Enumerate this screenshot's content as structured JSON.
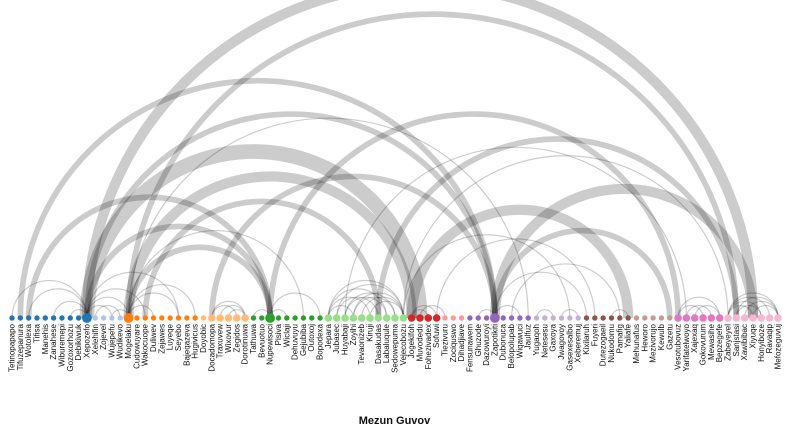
{
  "caption": "Mezun Guvov",
  "colors": {
    "arc": "#000000",
    "groups": [
      "#1f77b4",
      "#aec7e8",
      "#ff7f0e",
      "#ffbb78",
      "#2ca02c",
      "#98df8a",
      "#d62728",
      "#ff9896",
      "#9467bd",
      "#c5b0d5",
      "#8c564b",
      "#c49c94",
      "#e377c2",
      "#f7b6d2"
    ]
  },
  "nodes": [
    {
      "name": "Tetinopapapo",
      "group": 0,
      "size": 1
    },
    {
      "name": "Tifuzepanura",
      "group": 0,
      "size": 1
    },
    {
      "name": "Wotolexa",
      "group": 0,
      "size": 1
    },
    {
      "name": "Tifisa",
      "group": 0,
      "size": 1
    },
    {
      "name": "Manehis",
      "group": 0,
      "size": 1
    },
    {
      "name": "Zanahese",
      "group": 0,
      "size": 1
    },
    {
      "name": "Wiburemepi",
      "group": 0,
      "size": 1
    },
    {
      "name": "Gozoxorhozu",
      "group": 0,
      "size": 1
    },
    {
      "name": "Debikiwuk",
      "group": 0,
      "size": 1
    },
    {
      "name": "Xepozefo",
      "group": 0,
      "size": 3
    },
    {
      "name": "Xelehifin",
      "group": 1,
      "size": 1
    },
    {
      "name": "Zojevel",
      "group": 1,
      "size": 1
    },
    {
      "name": "Wujepefu",
      "group": 1,
      "size": 1
    },
    {
      "name": "Wudikevo",
      "group": 1,
      "size": 1
    },
    {
      "name": "Mogelaku",
      "group": 2,
      "size": 3
    },
    {
      "name": "Cudowuyare",
      "group": 2,
      "size": 1
    },
    {
      "name": "Wakocuope",
      "group": 2,
      "size": 1
    },
    {
      "name": "Duliwev",
      "group": 2,
      "size": 1
    },
    {
      "name": "Zejawes",
      "group": 2,
      "size": 1
    },
    {
      "name": "Luyeqe",
      "group": 2,
      "size": 1
    },
    {
      "name": "Seyebo",
      "group": 2,
      "size": 1
    },
    {
      "name": "Bajeqazeva",
      "group": 2,
      "size": 1
    },
    {
      "name": "Hugivicus",
      "group": 2,
      "size": 1
    },
    {
      "name": "Doyobic",
      "group": 3,
      "size": 1
    },
    {
      "name": "Docadomopa",
      "group": 3,
      "size": 2
    },
    {
      "name": "Traxuvew",
      "group": 3,
      "size": 2
    },
    {
      "name": "Wixovur",
      "group": 3,
      "size": 2
    },
    {
      "name": "Zegidos",
      "group": 3,
      "size": 2
    },
    {
      "name": "Dorotinuwa",
      "group": 3,
      "size": 2
    },
    {
      "name": "Tathuwa",
      "group": 4,
      "size": 1
    },
    {
      "name": "Bevuotuo",
      "group": 4,
      "size": 1
    },
    {
      "name": "Nupewisoci",
      "group": 4,
      "size": 3
    },
    {
      "name": "Pisiva",
      "group": 4,
      "size": 1
    },
    {
      "name": "Wiclaji",
      "group": 4,
      "size": 1
    },
    {
      "name": "Dehuvuyu",
      "group": 4,
      "size": 1
    },
    {
      "name": "Gejubiba",
      "group": 4,
      "size": 1
    },
    {
      "name": "Outoxoj",
      "group": 4,
      "size": 1
    },
    {
      "name": "Bopodexa",
      "group": 4,
      "size": 1
    },
    {
      "name": "Jepara",
      "group": 5,
      "size": 2
    },
    {
      "name": "Jubasec",
      "group": 5,
      "size": 2
    },
    {
      "name": "Huyabaji",
      "group": 5,
      "size": 2
    },
    {
      "name": "Zoyihi",
      "group": 5,
      "size": 2
    },
    {
      "name": "Tevaonizeb",
      "group": 5,
      "size": 2
    },
    {
      "name": "Kiruji",
      "group": 5,
      "size": 2
    },
    {
      "name": "Dasakudas",
      "group": 5,
      "size": 2
    },
    {
      "name": "Labaluqule",
      "group": 5,
      "size": 2
    },
    {
      "name": "Sedowepuma",
      "group": 5,
      "size": 2
    },
    {
      "name": "Vejecobozu",
      "group": 5,
      "size": 2
    },
    {
      "name": "Jogekifoh",
      "group": 6,
      "size": 2
    },
    {
      "name": "Muvodedu",
      "group": 6,
      "size": 2
    },
    {
      "name": "Fohezivadex",
      "group": 6,
      "size": 2
    },
    {
      "name": "Sofuwi",
      "group": 6,
      "size": 2
    },
    {
      "name": "Tiezivuru",
      "group": 7,
      "size": 1
    },
    {
      "name": "Zociquswo",
      "group": 7,
      "size": 1
    },
    {
      "name": "Dihadjiave",
      "group": 7,
      "size": 1
    },
    {
      "name": "Fensunawem",
      "group": 8,
      "size": 1
    },
    {
      "name": "Ghuzode",
      "group": 8,
      "size": 1
    },
    {
      "name": "Dazowuroyi",
      "group": 8,
      "size": 1
    },
    {
      "name": "Zapotikiti",
      "group": 8,
      "size": 3
    },
    {
      "name": "Dubonuca",
      "group": 8,
      "size": 1
    },
    {
      "name": "Belopolupab",
      "group": 8,
      "size": 1
    },
    {
      "name": "Wiqawuci",
      "group": 8,
      "size": 1
    },
    {
      "name": "Jaulfuz",
      "group": 8,
      "size": 1
    },
    {
      "name": "Yugaqoh",
      "group": 9,
      "size": 1
    },
    {
      "name": "Netesesu",
      "group": 9,
      "size": 1
    },
    {
      "name": "Gaxoya",
      "group": 9,
      "size": 1
    },
    {
      "name": "Jwagovoy",
      "group": 9,
      "size": 1
    },
    {
      "name": "Gasexesalbo",
      "group": 9,
      "size": 1
    },
    {
      "name": "Xeberemuj",
      "group": 9,
      "size": 1
    },
    {
      "name": "Kixilaruh",
      "group": 10,
      "size": 1
    },
    {
      "name": "Fuyeri",
      "group": 10,
      "size": 1
    },
    {
      "name": "Dutezogaeil",
      "group": 10,
      "size": 1
    },
    {
      "name": "Nukodomu",
      "group": 10,
      "size": 1
    },
    {
      "name": "Pamafig",
      "group": 10,
      "size": 1
    },
    {
      "name": "Yaliafe",
      "group": 10,
      "size": 1
    },
    {
      "name": "Mehunafus",
      "group": 11,
      "size": 1
    },
    {
      "name": "Heworo",
      "group": 11,
      "size": 1
    },
    {
      "name": "Mezivorujo",
      "group": 11,
      "size": 1
    },
    {
      "name": "Kewulb",
      "group": 11,
      "size": 1
    },
    {
      "name": "Gazetu",
      "group": 11,
      "size": 1
    },
    {
      "name": "Vesotubovuz",
      "group": 12,
      "size": 2
    },
    {
      "name": "Yarifatelwoyo",
      "group": 12,
      "size": 2
    },
    {
      "name": "Xajexaq",
      "group": 12,
      "size": 2
    },
    {
      "name": "Gokovurum",
      "group": 12,
      "size": 2
    },
    {
      "name": "Mewasihe",
      "group": 12,
      "size": 2
    },
    {
      "name": "Bepzegefe",
      "group": 12,
      "size": 2
    },
    {
      "name": "Zabeyeyel",
      "group": 13,
      "size": 2
    },
    {
      "name": "Sanjstasi",
      "group": 13,
      "size": 2
    },
    {
      "name": "Xawibibac",
      "group": 13,
      "size": 2
    },
    {
      "name": "Xiyuqe",
      "group": 13,
      "size": 2
    },
    {
      "name": "Honyiboze",
      "group": 13,
      "size": 2
    },
    {
      "name": "Ravaqip",
      "group": 13,
      "size": 2
    },
    {
      "name": "Mefozeguvuj",
      "group": 13,
      "size": 2
    }
  ],
  "links": [
    {
      "source": 9,
      "target": 49,
      "weight": 4
    },
    {
      "source": 9,
      "target": 89,
      "weight": 3
    },
    {
      "source": 14,
      "target": 48,
      "weight": 3
    },
    {
      "source": 14,
      "target": 87,
      "weight": 2
    },
    {
      "source": 14,
      "target": 62,
      "weight": 1
    },
    {
      "source": 9,
      "target": 58,
      "weight": 2
    },
    {
      "source": 31,
      "target": 80,
      "weight": 2
    },
    {
      "source": 58,
      "target": 89,
      "weight": 3
    },
    {
      "source": 44,
      "target": 87,
      "weight": 2
    },
    {
      "source": 40,
      "target": 81,
      "weight": 1
    },
    {
      "source": 58,
      "target": 79,
      "weight": 2
    },
    {
      "source": 9,
      "target": 31,
      "weight": 2
    },
    {
      "source": 14,
      "target": 31,
      "weight": 2
    },
    {
      "source": 1,
      "target": 58,
      "weight": 2
    },
    {
      "source": 2,
      "target": 31,
      "weight": 2
    },
    {
      "source": 48,
      "target": 74,
      "weight": 3
    },
    {
      "source": 24,
      "target": 58,
      "weight": 2
    },
    {
      "source": 16,
      "target": 44,
      "weight": 2
    },
    {
      "source": 14,
      "target": 20,
      "weight": 1
    },
    {
      "source": 9,
      "target": 20,
      "weight": 1
    },
    {
      "source": 9,
      "target": 14,
      "weight": 1
    },
    {
      "source": 0,
      "target": 9,
      "weight": 1
    },
    {
      "source": 2,
      "target": 9,
      "weight": 1
    },
    {
      "source": 5,
      "target": 9,
      "weight": 1
    },
    {
      "source": 7,
      "target": 9,
      "weight": 1
    },
    {
      "source": 9,
      "target": 12,
      "weight": 1
    },
    {
      "source": 10,
      "target": 13,
      "weight": 1
    },
    {
      "source": 14,
      "target": 17,
      "weight": 1
    },
    {
      "source": 14,
      "target": 22,
      "weight": 1
    },
    {
      "source": 12,
      "target": 14,
      "weight": 1
    },
    {
      "source": 24,
      "target": 28,
      "weight": 1
    },
    {
      "source": 25,
      "target": 28,
      "weight": 1
    },
    {
      "source": 24,
      "target": 27,
      "weight": 1
    },
    {
      "source": 26,
      "target": 28,
      "weight": 1
    },
    {
      "source": 29,
      "target": 31,
      "weight": 1
    },
    {
      "source": 31,
      "target": 37,
      "weight": 1
    },
    {
      "source": 31,
      "target": 33,
      "weight": 1
    },
    {
      "source": 38,
      "target": 47,
      "weight": 1
    },
    {
      "source": 39,
      "target": 47,
      "weight": 1
    },
    {
      "source": 40,
      "target": 46,
      "weight": 1
    },
    {
      "source": 41,
      "target": 47,
      "weight": 1
    },
    {
      "source": 38,
      "target": 45,
      "weight": 1
    },
    {
      "source": 42,
      "target": 47,
      "weight": 1
    },
    {
      "source": 39,
      "target": 44,
      "weight": 1
    },
    {
      "source": 38,
      "target": 43,
      "weight": 1
    },
    {
      "source": 40,
      "target": 45,
      "weight": 1
    },
    {
      "source": 41,
      "target": 46,
      "weight": 1
    },
    {
      "source": 43,
      "target": 47,
      "weight": 1
    },
    {
      "source": 38,
      "target": 41,
      "weight": 1
    },
    {
      "source": 48,
      "target": 51,
      "weight": 1
    },
    {
      "source": 49,
      "target": 52,
      "weight": 1
    },
    {
      "source": 48,
      "target": 50,
      "weight": 1
    },
    {
      "source": 58,
      "target": 61,
      "weight": 1
    },
    {
      "source": 56,
      "target": 58,
      "weight": 1
    },
    {
      "source": 63,
      "target": 65,
      "weight": 1
    },
    {
      "source": 66,
      "target": 68,
      "weight": 1
    },
    {
      "source": 80,
      "target": 85,
      "weight": 1
    },
    {
      "source": 81,
      "target": 84,
      "weight": 1
    },
    {
      "source": 80,
      "target": 83,
      "weight": 1
    },
    {
      "source": 82,
      "target": 85,
      "weight": 1
    },
    {
      "source": 86,
      "target": 92,
      "weight": 1
    },
    {
      "source": 86,
      "target": 91,
      "weight": 1
    },
    {
      "source": 87,
      "target": 92,
      "weight": 1
    },
    {
      "source": 86,
      "target": 90,
      "weight": 1
    },
    {
      "source": 88,
      "target": 92,
      "weight": 1
    },
    {
      "source": 86,
      "target": 89,
      "weight": 1
    },
    {
      "source": 89,
      "target": 92,
      "weight": 1
    },
    {
      "source": 87,
      "target": 90,
      "weight": 1
    },
    {
      "source": 72,
      "target": 74,
      "weight": 1
    },
    {
      "source": 47,
      "target": 86,
      "weight": 1
    },
    {
      "source": 47,
      "target": 67,
      "weight": 1
    },
    {
      "source": 51,
      "target": 70,
      "weight": 1
    },
    {
      "source": 58,
      "target": 69,
      "weight": 1
    },
    {
      "source": 60,
      "target": 73,
      "weight": 1
    },
    {
      "source": 14,
      "target": 35,
      "weight": 1
    },
    {
      "source": 9,
      "target": 16,
      "weight": 1
    }
  ]
}
